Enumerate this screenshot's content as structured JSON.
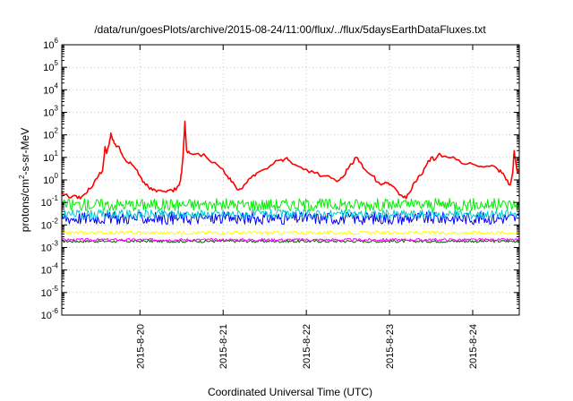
{
  "chart_data": {
    "type": "line",
    "title": "/data/run/goesPlots/archive/2015-08-24/11:00/flux/../flux/5daysEarthDataFluxes.txt",
    "xlabel": "Coordinated Universal Time (UTC)",
    "ylabel_parts": {
      "pre": "protons/cm",
      "sup": "2",
      "post": "-s-sr-MeV"
    },
    "y_scale": "log",
    "ylim": [
      1e-06,
      1000000.0
    ],
    "y_ticks": [
      {
        "value": 1e-06,
        "base": "10",
        "exp": "-6"
      },
      {
        "value": 1e-05,
        "base": "10",
        "exp": "-5"
      },
      {
        "value": 0.0001,
        "base": "10",
        "exp": "-4"
      },
      {
        "value": 0.001,
        "base": "10",
        "exp": "-3"
      },
      {
        "value": 0.01,
        "base": "10",
        "exp": "-2"
      },
      {
        "value": 0.1,
        "base": "10",
        "exp": "-1"
      },
      {
        "value": 1,
        "base": "10",
        "exp": "0"
      },
      {
        "value": 10.0,
        "base": "10",
        "exp": "1"
      },
      {
        "value": 100.0,
        "base": "10",
        "exp": "2"
      },
      {
        "value": 1000.0,
        "base": "10",
        "exp": "3"
      },
      {
        "value": 10000.0,
        "base": "10",
        "exp": "4"
      },
      {
        "value": 100000.0,
        "base": "10",
        "exp": "5"
      },
      {
        "value": 1000000.0,
        "base": "10",
        "exp": "6"
      }
    ],
    "xlim_days": [
      -0.94,
      4.56
    ],
    "x_ticks": [
      {
        "day": 0,
        "label": "2015-8-20"
      },
      {
        "day": 1,
        "label": "2015-8-21"
      },
      {
        "day": 2,
        "label": "2015-8-22"
      },
      {
        "day": 3,
        "label": "2015-8-23"
      },
      {
        "day": 4,
        "label": "2015-8-24"
      }
    ],
    "grid": true,
    "series": [
      {
        "color": "#ff0000",
        "points": [
          [
            -0.94,
            0.3
          ],
          [
            -0.9,
            0.22
          ],
          [
            -0.85,
            0.16
          ],
          [
            -0.8,
            0.2
          ],
          [
            -0.75,
            0.15
          ],
          [
            -0.7,
            0.18
          ],
          [
            -0.65,
            0.25
          ],
          [
            -0.6,
            0.4
          ],
          [
            -0.55,
            0.8
          ],
          [
            -0.5,
            1.5
          ],
          [
            -0.45,
            2.5
          ],
          [
            -0.42,
            30
          ],
          [
            -0.4,
            15
          ],
          [
            -0.37,
            40
          ],
          [
            -0.35,
            120
          ],
          [
            -0.33,
            60
          ],
          [
            -0.3,
            40
          ],
          [
            -0.25,
            30
          ],
          [
            -0.2,
            10
          ],
          [
            -0.15,
            6
          ],
          [
            -0.1,
            5
          ],
          [
            -0.05,
            3
          ],
          [
            0.0,
            1.5
          ],
          [
            0.05,
            0.8
          ],
          [
            0.1,
            0.5
          ],
          [
            0.15,
            0.35
          ],
          [
            0.2,
            0.3
          ],
          [
            0.25,
            0.35
          ],
          [
            0.3,
            0.3
          ],
          [
            0.35,
            0.35
          ],
          [
            0.4,
            0.3
          ],
          [
            0.45,
            0.5
          ],
          [
            0.48,
            0.8
          ],
          [
            0.5,
            2
          ],
          [
            0.52,
            15
          ],
          [
            0.54,
            400
          ],
          [
            0.56,
            20
          ],
          [
            0.6,
            15
          ],
          [
            0.7,
            15
          ],
          [
            0.8,
            10
          ],
          [
            0.9,
            6
          ],
          [
            1.0,
            3
          ],
          [
            1.05,
            1.5
          ],
          [
            1.1,
            0.8
          ],
          [
            1.15,
            0.5
          ],
          [
            1.2,
            0.4
          ],
          [
            1.25,
            0.6
          ],
          [
            1.3,
            1
          ],
          [
            1.35,
            1.5
          ],
          [
            1.4,
            2
          ],
          [
            1.5,
            3
          ],
          [
            1.6,
            5
          ],
          [
            1.7,
            8
          ],
          [
            1.75,
            9
          ],
          [
            1.8,
            7
          ],
          [
            1.9,
            4
          ],
          [
            2.0,
            3
          ],
          [
            2.1,
            2
          ],
          [
            2.2,
            1.5
          ],
          [
            2.3,
            1.2
          ],
          [
            2.4,
            1
          ],
          [
            2.45,
            1.5
          ],
          [
            2.5,
            3
          ],
          [
            2.55,
            5
          ],
          [
            2.6,
            10
          ],
          [
            2.65,
            6
          ],
          [
            2.7,
            3
          ],
          [
            2.8,
            1.5
          ],
          [
            2.85,
            0.8
          ],
          [
            2.9,
            0.6
          ],
          [
            2.95,
            0.8
          ],
          [
            3.0,
            0.6
          ],
          [
            3.05,
            0.5
          ],
          [
            3.1,
            0.3
          ],
          [
            3.15,
            0.2
          ],
          [
            3.2,
            0.15
          ],
          [
            3.25,
            0.3
          ],
          [
            3.3,
            0.8
          ],
          [
            3.35,
            1.5
          ],
          [
            3.4,
            2
          ],
          [
            3.45,
            5
          ],
          [
            3.5,
            10
          ],
          [
            3.55,
            8
          ],
          [
            3.6,
            15
          ],
          [
            3.7,
            10
          ],
          [
            3.8,
            8
          ],
          [
            3.9,
            5
          ],
          [
            4.0,
            5
          ],
          [
            4.1,
            4
          ],
          [
            4.2,
            4
          ],
          [
            4.3,
            3
          ],
          [
            4.35,
            2
          ],
          [
            4.4,
            1
          ],
          [
            4.45,
            0.6
          ],
          [
            4.48,
            2
          ],
          [
            4.5,
            20
          ],
          [
            4.52,
            5
          ],
          [
            4.54,
            2
          ],
          [
            4.56,
            2.5
          ]
        ]
      },
      {
        "color": "#00ee00",
        "level": 0.08,
        "spread": 1.9
      },
      {
        "color": "#00cccc",
        "level": 0.03,
        "spread": 1.6
      },
      {
        "color": "#0000ff",
        "level": 0.02,
        "spread": 1.9
      },
      {
        "color": "#ffff00",
        "level": 0.0045,
        "spread": 1.2
      },
      {
        "color": "#ff00ff",
        "level": 0.0022,
        "spread": 1.15
      },
      {
        "color": "#006400",
        "level": 0.0019,
        "spread": 1.15
      }
    ]
  }
}
